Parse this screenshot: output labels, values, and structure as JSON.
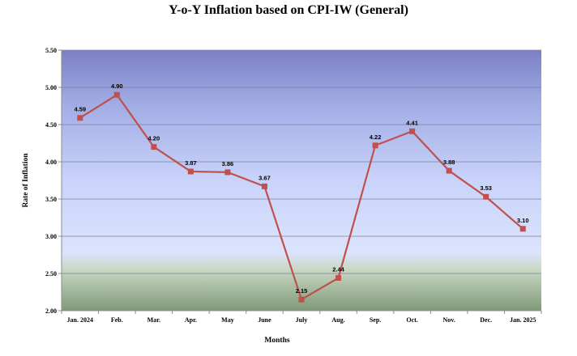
{
  "chart_data": {
    "type": "line",
    "title": "Y-o-Y Inflation based on CPI-IW (General)",
    "xlabel": "Months",
    "ylabel": "Rate of Inflation",
    "ylim": [
      2.0,
      5.5
    ],
    "yticks": [
      "2.00",
      "2.50",
      "3.00",
      "3.50",
      "4.00",
      "4.50",
      "5.00",
      "5.50"
    ],
    "categories": [
      "Jan. 2024",
      "Feb.",
      "Mar.",
      "Apr.",
      "May",
      "June",
      "July",
      "Aug.",
      "Sep.",
      "Oct.",
      "Nov.",
      "Dec.",
      "Jan. 2025"
    ],
    "series": [
      {
        "name": "Y-o-Y Inflation",
        "values": [
          4.59,
          4.9,
          4.2,
          3.87,
          3.86,
          3.67,
          2.15,
          2.44,
          4.22,
          4.41,
          3.88,
          3.53,
          3.1
        ],
        "labels": [
          "4.59",
          "4.90",
          "4.20",
          "3.87",
          "3.86",
          "3.67",
          "2.15",
          "2.44",
          "4.22",
          "4.41",
          "3.88",
          "3.53",
          "3.10"
        ]
      }
    ],
    "colors": {
      "line": "#c0504d",
      "gridline": "#7f7f9f",
      "bg_top": "#7b80c4",
      "bg_mid": "#d5dcfb",
      "bg_bottom": "#7f9a78"
    }
  }
}
